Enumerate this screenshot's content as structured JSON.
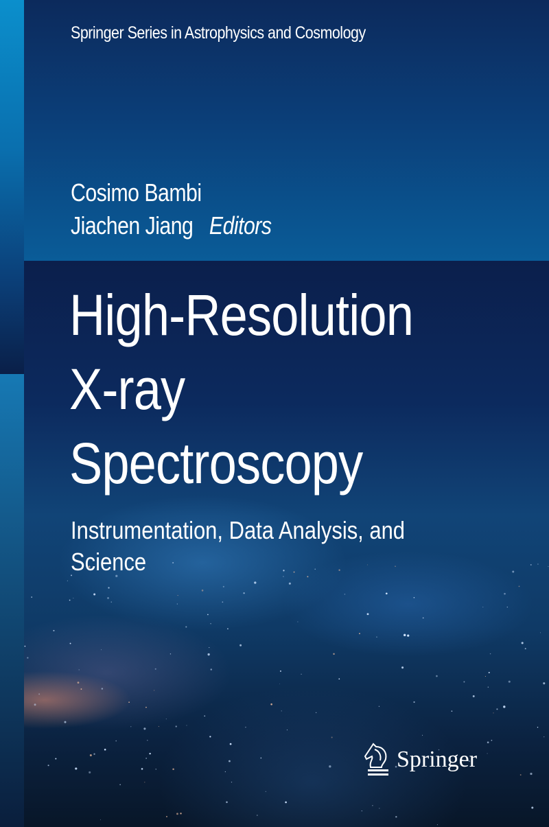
{
  "cover": {
    "series": "Springer Series in Astrophysics and Cosmology",
    "editors": [
      "Cosimo Bambi",
      "Jiachen Jiang"
    ],
    "editors_role": "Editors",
    "title_lines": [
      "High-Resolution",
      "X-ray",
      "Spectroscopy"
    ],
    "subtitle_lines": [
      "Instrumentation, Data Analysis, and",
      "Science"
    ],
    "publisher": "Springer",
    "publisher_logo_icon": "chess-knight-icon",
    "colors": {
      "top_panel": "#0b3e78",
      "dark_band": "#0b1f4c",
      "strip": "#0b8fcc",
      "text": "#ffffff"
    }
  }
}
